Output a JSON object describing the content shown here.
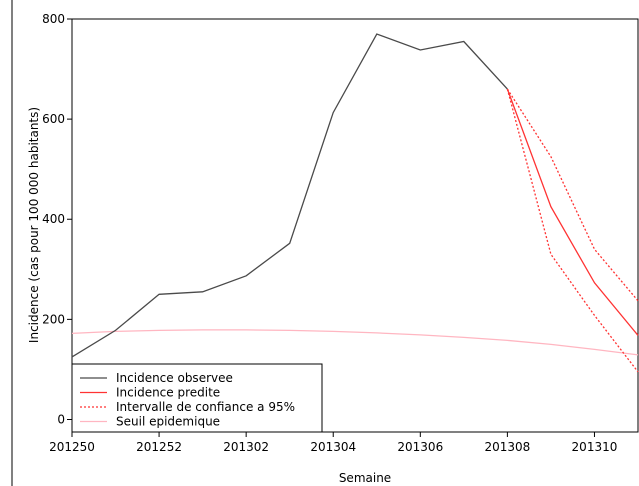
{
  "chart_data": {
    "type": "line",
    "xlabel": "Semaine",
    "ylabel": "Incidence (cas pour 100 000 habitants)",
    "xlim": [
      0,
      13
    ],
    "ylim": [
      -25,
      800
    ],
    "x_ticks": [
      0,
      2,
      4,
      6,
      8,
      10,
      12
    ],
    "x_tick_labels": [
      "201250",
      "201252",
      "201302",
      "201304",
      "201306",
      "201308",
      "201310"
    ],
    "y_ticks": [
      0,
      200,
      400,
      600,
      800
    ],
    "y_tick_labels": [
      "0",
      "200",
      "400",
      "600",
      "800"
    ],
    "grid": false,
    "legend_position": "bottom-left",
    "series": [
      {
        "name": "Incidence observee",
        "color": "#4a4a4a",
        "style": "solid",
        "x": [
          0,
          1,
          2,
          3,
          4,
          5,
          6,
          7,
          8,
          9,
          10,
          11
        ],
        "values": [
          125,
          178,
          250,
          255,
          287,
          352,
          613,
          770,
          738,
          755,
          660,
          null
        ]
      },
      {
        "name": "Incidence predite",
        "color": "#ff3333",
        "style": "solid",
        "x": [
          10,
          11,
          12,
          13
        ],
        "values": [
          660,
          425,
          273,
          168
        ]
      },
      {
        "name": "Intervalle de confiance a 95%",
        "color": "#ff3333",
        "style": "dotted",
        "bands": [
          {
            "x": [
              10,
              11,
              12,
              13
            ],
            "values": [
              660,
              525,
              340,
              237
            ]
          },
          {
            "x": [
              10,
              11,
              12,
              13
            ],
            "values": [
              660,
              330,
              208,
              95
            ]
          }
        ]
      },
      {
        "name": "Seuil epidemique",
        "color": "#ffb6c1",
        "style": "solid",
        "x": [
          0,
          1,
          2,
          3,
          4,
          5,
          6,
          7,
          8,
          9,
          10,
          11,
          12,
          13
        ],
        "values": [
          172,
          176,
          178,
          179,
          179,
          178,
          176,
          173,
          169,
          164,
          158,
          150,
          140,
          129
        ]
      }
    ]
  }
}
